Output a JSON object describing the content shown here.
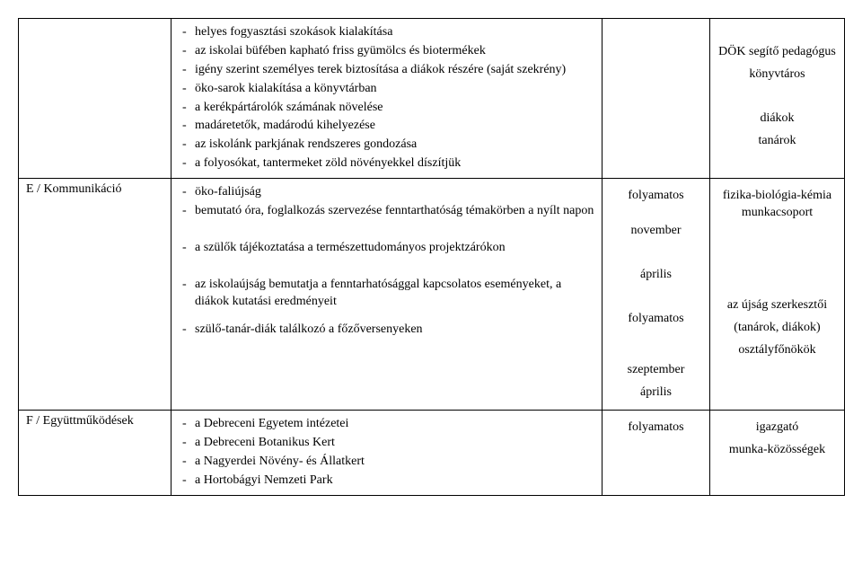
{
  "rows": [
    {
      "label": "",
      "items": [
        "helyes fogyasztási szokások kialakítása",
        "az iskolai büfében kapható friss gyümölcs és biotermékek",
        "igény szerint személyes terek biztosítása a diákok részére (saját szekrény)",
        "öko-sarok kialakítása a könyvtárban",
        "a kerékpártárolók számának növelése",
        "madáretetők, madárodú kihelyezése",
        "az iskolánk parkjának rendszeres gondozása",
        "a folyosókat, tantermeket zöld növényekkel díszítjük"
      ],
      "col3": [],
      "col4": [
        "DÖK segítő pedagógus",
        "könyvtáros",
        "diákok",
        "tanárok"
      ]
    },
    {
      "label": "E / Kommunikáció",
      "items": [
        "öko-faliújság",
        "bemutató óra, foglalkozás szervezése fenntarthatóság témakörben a nyílt napon",
        "a szülők tájékoztatása a természettudományos projektzárókon",
        "az iskolaújság bemutatja a fenntarhatósággal kapcsolatos eseményeket, a diákok kutatási eredményeit",
        "szülő-tanár-diák találkozó a főzőversenyeken"
      ],
      "col3": [
        "folyamatos",
        "november",
        "április",
        "folyamatos",
        "szeptember",
        "április"
      ],
      "col4": [
        "fizika-biológia-kémia munkacsoport",
        "az újság szerkesztői",
        "(tanárok, diákok)",
        "osztályfőnökök"
      ]
    },
    {
      "label": "F / Együttműködések",
      "items": [
        "a Debreceni Egyetem intézetei",
        "a Debreceni Botanikus Kert",
        "a Nagyerdei Növény- és Állatkert",
        "a Hortobágyi Nemzeti Park"
      ],
      "col3": [
        "folyamatos"
      ],
      "col4": [
        "igazgató",
        "munka-közösségek"
      ]
    }
  ]
}
